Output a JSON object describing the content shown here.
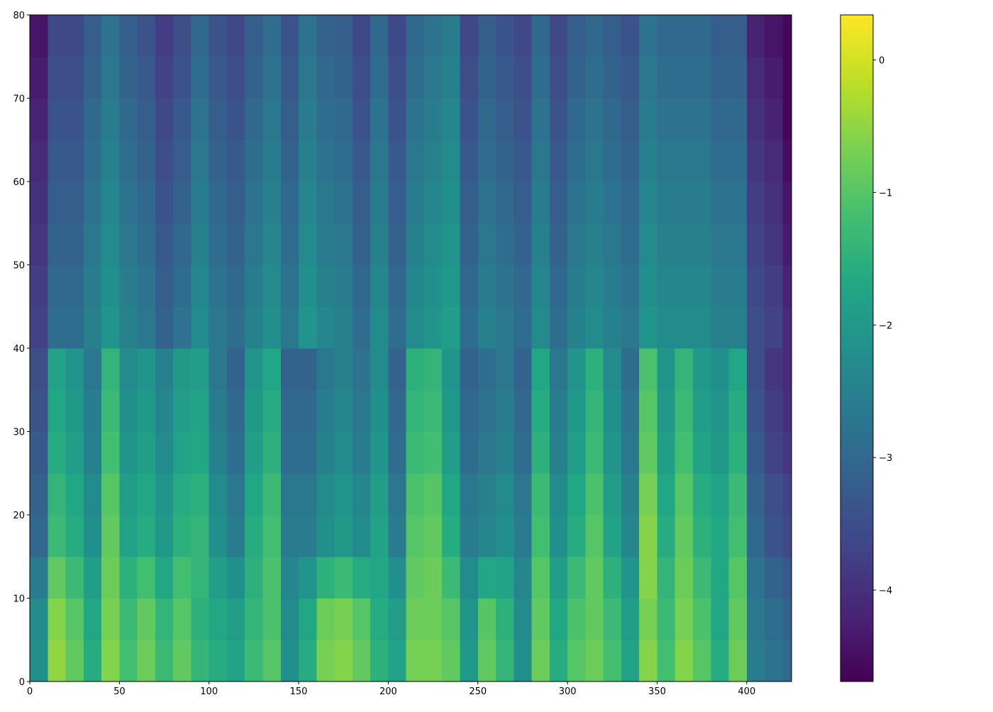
{
  "chart_data": {
    "type": "heatmap",
    "colormap": "viridis",
    "x": [
      0,
      10,
      20,
      30,
      40,
      50,
      60,
      70,
      80,
      90,
      100,
      110,
      120,
      130,
      140,
      150,
      160,
      170,
      180,
      190,
      200,
      210,
      220,
      230,
      240,
      250,
      260,
      270,
      280,
      290,
      300,
      310,
      320,
      330,
      340,
      350,
      360,
      370,
      380,
      390,
      400,
      410,
      420,
      425
    ],
    "y": [
      0,
      5,
      10,
      15,
      20,
      25,
      30,
      35,
      40,
      45,
      50,
      55,
      60,
      65,
      70,
      75,
      80
    ],
    "values": [
      [
        -2.2,
        -0.5,
        -0.9,
        -1.6,
        -0.6,
        -1.2,
        -0.8,
        -1.3,
        -0.9,
        -1.4,
        -1.6,
        -1.8,
        -1.3,
        -1.0,
        -2.2,
        -1.6,
        -0.7,
        -0.6,
        -0.9,
        -1.5,
        -1.8,
        -0.7,
        -0.7,
        -0.9,
        -2.0,
        -0.9,
        -1.4,
        -2.2,
        -0.8,
        -1.6,
        -1.0,
        -0.8,
        -1.2,
        -1.8,
        -0.6,
        -1.2,
        -0.6,
        -1.0,
        -1.6,
        -0.8,
        -2.6,
        -2.8,
        -3.0
      ],
      [
        -2.3,
        -0.6,
        -1.0,
        -1.7,
        -0.7,
        -1.3,
        -0.9,
        -1.4,
        -1.0,
        -1.5,
        -1.7,
        -1.9,
        -1.4,
        -1.1,
        -2.3,
        -1.7,
        -0.8,
        -0.7,
        -1.0,
        -1.6,
        -1.9,
        -0.8,
        -0.8,
        -1.0,
        -2.1,
        -1.0,
        -1.5,
        -2.3,
        -0.9,
        -1.7,
        -1.1,
        -0.9,
        -1.3,
        -1.9,
        -0.7,
        -1.3,
        -0.7,
        -1.1,
        -1.7,
        -0.9,
        -2.7,
        -2.9,
        -3.1
      ],
      [
        -2.6,
        -0.9,
        -1.3,
        -1.9,
        -0.8,
        -1.5,
        -1.2,
        -1.7,
        -1.2,
        -1.4,
        -1.9,
        -2.2,
        -1.5,
        -1.1,
        -2.4,
        -2.1,
        -1.5,
        -1.3,
        -1.6,
        -1.7,
        -2.2,
        -0.9,
        -0.8,
        -1.3,
        -2.3,
        -1.7,
        -1.8,
        -2.4,
        -1.0,
        -1.9,
        -1.3,
        -0.9,
        -1.5,
        -2.1,
        -0.6,
        -1.4,
        -0.8,
        -1.3,
        -1.7,
        -1.0,
        -2.8,
        -3.1,
        -3.3
      ],
      [
        -3.0,
        -1.3,
        -1.6,
        -2.2,
        -0.9,
        -1.8,
        -1.6,
        -2.0,
        -1.5,
        -1.4,
        -2.2,
        -2.6,
        -1.6,
        -1.2,
        -2.6,
        -2.6,
        -2.2,
        -2.0,
        -2.3,
        -1.8,
        -2.6,
        -1.0,
        -0.9,
        -1.6,
        -2.6,
        -2.4,
        -2.2,
        -2.6,
        -1.2,
        -2.2,
        -1.6,
        -1.0,
        -1.8,
        -2.4,
        -0.6,
        -1.6,
        -0.9,
        -1.5,
        -1.7,
        -1.2,
        -3.0,
        -3.4,
        -3.6
      ],
      [
        -3.1,
        -1.4,
        -1.7,
        -2.3,
        -1.0,
        -1.9,
        -1.7,
        -2.1,
        -1.6,
        -1.5,
        -2.3,
        -2.7,
        -1.7,
        -1.3,
        -2.7,
        -2.7,
        -2.3,
        -2.1,
        -2.4,
        -1.9,
        -2.7,
        -1.1,
        -1.0,
        -1.7,
        -2.7,
        -2.5,
        -2.3,
        -2.7,
        -1.3,
        -2.3,
        -1.7,
        -1.1,
        -1.9,
        -2.5,
        -0.7,
        -1.7,
        -1.0,
        -1.6,
        -1.8,
        -1.3,
        -3.1,
        -3.5,
        -3.7
      ],
      [
        -3.3,
        -1.6,
        -1.9,
        -2.5,
        -1.2,
        -2.1,
        -1.9,
        -2.3,
        -1.8,
        -1.7,
        -2.5,
        -2.9,
        -1.9,
        -1.5,
        -2.9,
        -2.9,
        -2.5,
        -2.3,
        -2.6,
        -2.1,
        -2.9,
        -1.3,
        -1.2,
        -1.9,
        -2.9,
        -2.7,
        -2.5,
        -2.9,
        -1.5,
        -2.5,
        -1.9,
        -1.3,
        -2.1,
        -2.7,
        -0.9,
        -1.9,
        -1.2,
        -1.8,
        -2.0,
        -1.5,
        -3.3,
        -3.7,
        -3.9
      ],
      [
        -3.4,
        -1.7,
        -2.0,
        -2.6,
        -1.3,
        -2.2,
        -2.0,
        -2.4,
        -1.9,
        -1.8,
        -2.6,
        -3.0,
        -2.0,
        -1.6,
        -3.0,
        -3.0,
        -2.6,
        -2.4,
        -2.7,
        -2.2,
        -3.0,
        -1.4,
        -1.3,
        -2.0,
        -3.0,
        -2.8,
        -2.6,
        -3.0,
        -1.6,
        -2.6,
        -2.0,
        -1.4,
        -2.2,
        -2.8,
        -1.0,
        -2.0,
        -1.3,
        -1.9,
        -2.1,
        -1.6,
        -3.4,
        -3.8,
        -4.0
      ],
      [
        -3.5,
        -1.8,
        -2.1,
        -2.7,
        -1.4,
        -2.3,
        -2.1,
        -2.5,
        -2.0,
        -1.9,
        -2.7,
        -3.1,
        -2.1,
        -1.7,
        -3.1,
        -3.1,
        -2.7,
        -2.5,
        -2.8,
        -2.3,
        -3.1,
        -1.5,
        -1.4,
        -2.1,
        -3.1,
        -2.9,
        -2.7,
        -3.1,
        -1.7,
        -2.7,
        -2.1,
        -1.5,
        -2.3,
        -2.9,
        -1.1,
        -2.1,
        -1.4,
        -2.0,
        -2.2,
        -1.7,
        -3.5,
        -3.9,
        -4.1
      ],
      [
        -3.7,
        -2.9,
        -2.9,
        -2.5,
        -2.1,
        -2.5,
        -2.7,
        -3.1,
        -2.8,
        -2.3,
        -2.7,
        -2.9,
        -2.5,
        -2.2,
        -2.7,
        -2.1,
        -2.4,
        -2.5,
        -2.9,
        -2.3,
        -2.9,
        -2.3,
        -2.1,
        -1.9,
        -2.9,
        -2.5,
        -2.7,
        -2.9,
        -2.3,
        -2.9,
        -2.5,
        -2.3,
        -2.5,
        -2.7,
        -2.1,
        -2.3,
        -2.3,
        -2.3,
        -2.5,
        -2.5,
        -3.5,
        -3.7,
        -4.1
      ],
      [
        -3.8,
        -3.0,
        -3.0,
        -2.6,
        -2.2,
        -2.6,
        -2.8,
        -3.2,
        -2.9,
        -2.4,
        -2.8,
        -3.0,
        -2.6,
        -2.3,
        -2.8,
        -2.2,
        -2.5,
        -2.6,
        -3.0,
        -2.4,
        -3.0,
        -2.4,
        -2.2,
        -2.0,
        -3.0,
        -2.6,
        -2.8,
        -3.0,
        -2.4,
        -3.0,
        -2.6,
        -2.4,
        -2.6,
        -2.8,
        -2.2,
        -2.4,
        -2.4,
        -2.4,
        -2.6,
        -2.6,
        -3.6,
        -3.8,
        -4.2
      ],
      [
        -3.9,
        -3.1,
        -3.1,
        -2.7,
        -2.3,
        -2.7,
        -2.9,
        -3.3,
        -3.0,
        -2.5,
        -2.9,
        -3.1,
        -2.7,
        -2.4,
        -2.9,
        -2.3,
        -2.6,
        -2.7,
        -3.1,
        -2.5,
        -3.1,
        -2.5,
        -2.3,
        -2.1,
        -3.1,
        -2.7,
        -2.9,
        -3.1,
        -2.5,
        -3.1,
        -2.7,
        -2.5,
        -2.7,
        -2.9,
        -2.3,
        -2.5,
        -2.5,
        -2.5,
        -2.7,
        -2.7,
        -3.7,
        -3.9,
        -4.3
      ],
      [
        -4.0,
        -3.2,
        -3.2,
        -2.8,
        -2.4,
        -2.8,
        -3.0,
        -3.4,
        -3.1,
        -2.6,
        -3.0,
        -3.2,
        -2.8,
        -2.5,
        -3.0,
        -2.4,
        -2.7,
        -2.8,
        -3.2,
        -2.6,
        -3.2,
        -2.6,
        -2.4,
        -2.2,
        -3.2,
        -2.8,
        -3.0,
        -3.2,
        -2.6,
        -3.2,
        -2.8,
        -2.6,
        -2.8,
        -3.0,
        -2.4,
        -2.6,
        -2.6,
        -2.6,
        -2.8,
        -2.8,
        -3.8,
        -4.0,
        -4.4
      ],
      [
        -4.1,
        -3.3,
        -3.3,
        -2.9,
        -2.5,
        -2.9,
        -3.1,
        -3.5,
        -3.2,
        -2.7,
        -3.1,
        -3.3,
        -2.9,
        -2.6,
        -3.1,
        -2.5,
        -2.8,
        -2.9,
        -3.3,
        -2.7,
        -3.3,
        -2.7,
        -2.5,
        -2.3,
        -3.3,
        -2.9,
        -3.1,
        -3.3,
        -2.7,
        -3.3,
        -2.9,
        -2.7,
        -2.9,
        -3.1,
        -2.5,
        -2.7,
        -2.7,
        -2.7,
        -2.9,
        -2.9,
        -3.9,
        -4.1,
        -4.5
      ],
      [
        -4.2,
        -3.4,
        -3.4,
        -3.0,
        -2.6,
        -3.0,
        -3.2,
        -3.6,
        -3.3,
        -2.8,
        -3.2,
        -3.4,
        -3.0,
        -2.7,
        -3.2,
        -2.6,
        -2.9,
        -3.0,
        -3.4,
        -2.8,
        -3.4,
        -2.8,
        -2.6,
        -2.4,
        -3.4,
        -3.0,
        -3.2,
        -3.4,
        -2.8,
        -3.4,
        -3.0,
        -2.8,
        -3.0,
        -3.2,
        -2.6,
        -2.8,
        -2.8,
        -2.8,
        -3.0,
        -3.0,
        -4.0,
        -4.2,
        -4.6
      ],
      [
        -4.3,
        -3.5,
        -3.5,
        -3.1,
        -2.7,
        -3.1,
        -3.3,
        -3.7,
        -3.4,
        -2.9,
        -3.3,
        -3.5,
        -3.1,
        -2.8,
        -3.3,
        -2.7,
        -3.0,
        -3.1,
        -3.5,
        -2.9,
        -3.5,
        -2.9,
        -2.7,
        -2.5,
        -3.5,
        -3.1,
        -3.3,
        -3.5,
        -2.9,
        -3.5,
        -3.1,
        -2.9,
        -3.1,
        -3.3,
        -2.7,
        -2.9,
        -2.9,
        -2.9,
        -3.1,
        -3.1,
        -4.1,
        -4.3,
        -4.6
      ],
      [
        -4.4,
        -3.6,
        -3.6,
        -3.2,
        -2.8,
        -3.2,
        -3.4,
        -3.8,
        -3.5,
        -3.0,
        -3.4,
        -3.6,
        -3.2,
        -2.9,
        -3.4,
        -2.8,
        -3.1,
        -3.2,
        -3.6,
        -3.0,
        -3.6,
        -3.0,
        -2.8,
        -2.6,
        -3.6,
        -3.2,
        -3.4,
        -3.6,
        -3.0,
        -3.6,
        -3.2,
        -3.0,
        -3.2,
        -3.4,
        -2.8,
        -3.0,
        -3.0,
        -3.0,
        -3.2,
        -3.2,
        -4.2,
        -4.4,
        -4.6
      ]
    ],
    "xlim": [
      0,
      425
    ],
    "ylim": [
      0,
      80
    ],
    "xticks": [
      0,
      50,
      100,
      150,
      200,
      250,
      300,
      350,
      400
    ],
    "yticks": [
      0,
      10,
      20,
      30,
      40,
      50,
      60,
      70,
      80
    ],
    "colorbar": {
      "clim": [
        -4.69,
        0.34
      ],
      "ticks": [
        0,
        {
          "value": -1,
          "label": "−1"
        },
        {
          "value": -2,
          "label": "−2"
        },
        {
          "value": -3,
          "label": "−3"
        },
        {
          "value": -4,
          "label": "−4"
        }
      ]
    }
  }
}
